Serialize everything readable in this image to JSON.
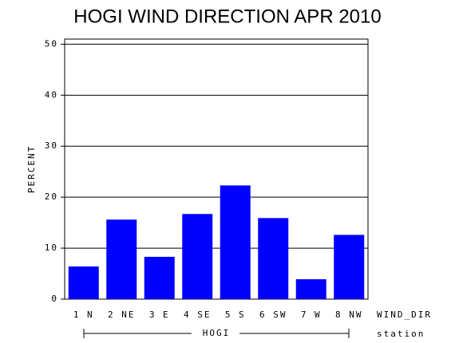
{
  "chart_data": {
    "type": "bar",
    "title": "HOGI WIND DIRECTION APR 2010",
    "ylabel": "PERCENT",
    "xlabel": "WIND_DIR",
    "group_label": "HOGI",
    "group_axis_label": "station",
    "categories": [
      "1 N",
      "2 NE",
      "3 E",
      "4 SE",
      "5 S",
      "6 SW",
      "7 W",
      "8 NW"
    ],
    "values": [
      6.4,
      15.6,
      8.3,
      16.7,
      22.3,
      15.9,
      3.9,
      12.6
    ],
    "color": "#0000ff",
    "ylim": [
      0,
      51
    ],
    "yticks": [
      0,
      10,
      20,
      30,
      40,
      50
    ],
    "grid": true
  }
}
